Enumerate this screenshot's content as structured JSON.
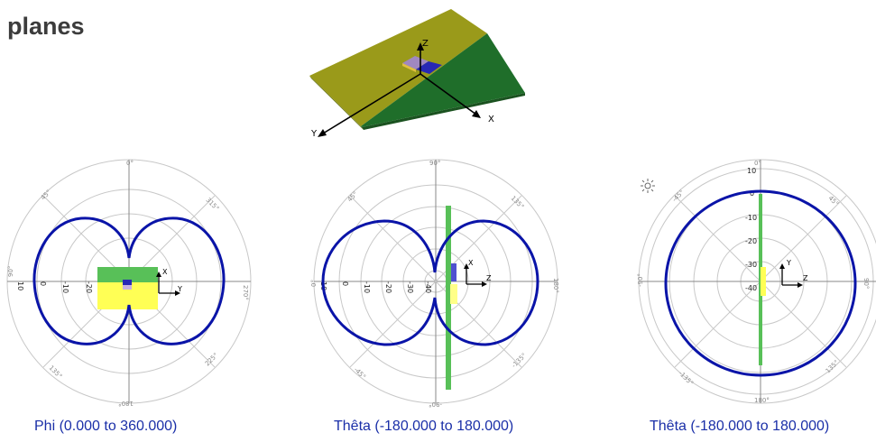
{
  "title": "planes",
  "geometry_view": {
    "axes": {
      "x": "X",
      "y": "Y",
      "z": "Z"
    }
  },
  "plots": [
    {
      "caption": "Phi (0.000 to 360.000)",
      "angle_labels": [
        "0°",
        "315°",
        "270°",
        "225°",
        "180°",
        "135°",
        "90°",
        "45°"
      ],
      "radial_labels": [
        "10",
        "0",
        "-10",
        "-20"
      ],
      "axis_labels": {
        "h": "Y",
        "v": "X"
      }
    },
    {
      "caption": "Thêta (-180.000 to 180.000)",
      "angle_labels": [
        "90°",
        "135°",
        "180°",
        "-135°",
        "-90°",
        "-45°",
        "0°",
        "45°"
      ],
      "radial_labels": [
        "10",
        "0",
        "-10",
        "-20",
        "-30",
        "-40"
      ],
      "axis_labels": {
        "h": "Z",
        "v": "X"
      }
    },
    {
      "caption": "Thêta (-180.000 to 180.000)",
      "angle_labels": [
        "0°",
        "45°",
        "90°",
        "135°",
        "180°",
        "-135°",
        "-90°",
        "-45°"
      ],
      "radial_labels": [
        "10",
        "0",
        "-10",
        "-20",
        "-30",
        "-40"
      ],
      "axis_labels": {
        "h": "Z",
        "v": "Y"
      }
    }
  ],
  "colors": {
    "pattern": "#0a14a8",
    "grid": "#c8c8c8",
    "board_yellow": "#9a9a1a",
    "board_green": "#1f6e2a",
    "board_bright_green": "#58c058",
    "board_bright_yellow": "#ffff55",
    "patch_blue": "#2828b4",
    "caption_blue": "#1a2fa8"
  },
  "icons": [
    "sun-icon"
  ]
}
